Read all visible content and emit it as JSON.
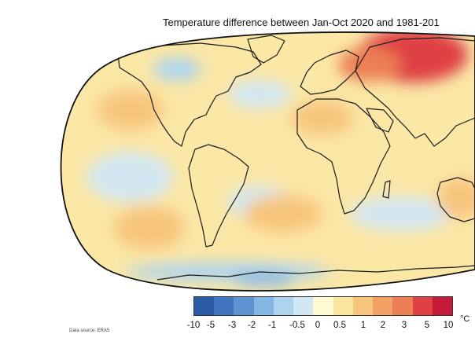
{
  "title": "Temperature difference between Jan-Oct 2020 and 1981-201",
  "legend": {
    "unit": "°C",
    "ticks": [
      "-10",
      "-5",
      "-3",
      "-2",
      "-1",
      "-0.5",
      "0",
      "0.5",
      "1",
      "2",
      "3",
      "5",
      "10"
    ],
    "colors": [
      "#2b5aa6",
      "#3f74bf",
      "#5f92d2",
      "#84b6e3",
      "#add4ef",
      "#d3e7f2",
      "#fff9d2",
      "#fbe6a0",
      "#f7c57e",
      "#f2a064",
      "#ec7f55",
      "#df4045",
      "#c61a3b"
    ]
  },
  "source": "Data source: ERA5",
  "map": {
    "ocean_base_color": "#fbe7a6",
    "land_outline_color": "#1a1a1a",
    "patches": [
      {
        "region": "Siberia",
        "level": "5"
      },
      {
        "region": "Northwest Russia",
        "level": "3"
      },
      {
        "region": "Western Canada",
        "level": "-1"
      },
      {
        "region": "North Atlantic",
        "level": "-0.5"
      },
      {
        "region": "Eastern Pacific",
        "level": "-0.5"
      },
      {
        "region": "South Atlantic",
        "level": "-0.5"
      },
      {
        "region": "Indian Ocean",
        "level": "-0.5"
      },
      {
        "region": "Antarctic coast",
        "level": "-1"
      },
      {
        "region": "West Antarctica",
        "level": "-2"
      },
      {
        "region": "North Pacific",
        "level": "1"
      },
      {
        "region": "Southwest Pacific",
        "level": "1"
      },
      {
        "region": "South Atlantic east",
        "level": "1"
      },
      {
        "region": "Australia",
        "level": "1"
      },
      {
        "region": "Sahara",
        "level": "1"
      }
    ]
  }
}
